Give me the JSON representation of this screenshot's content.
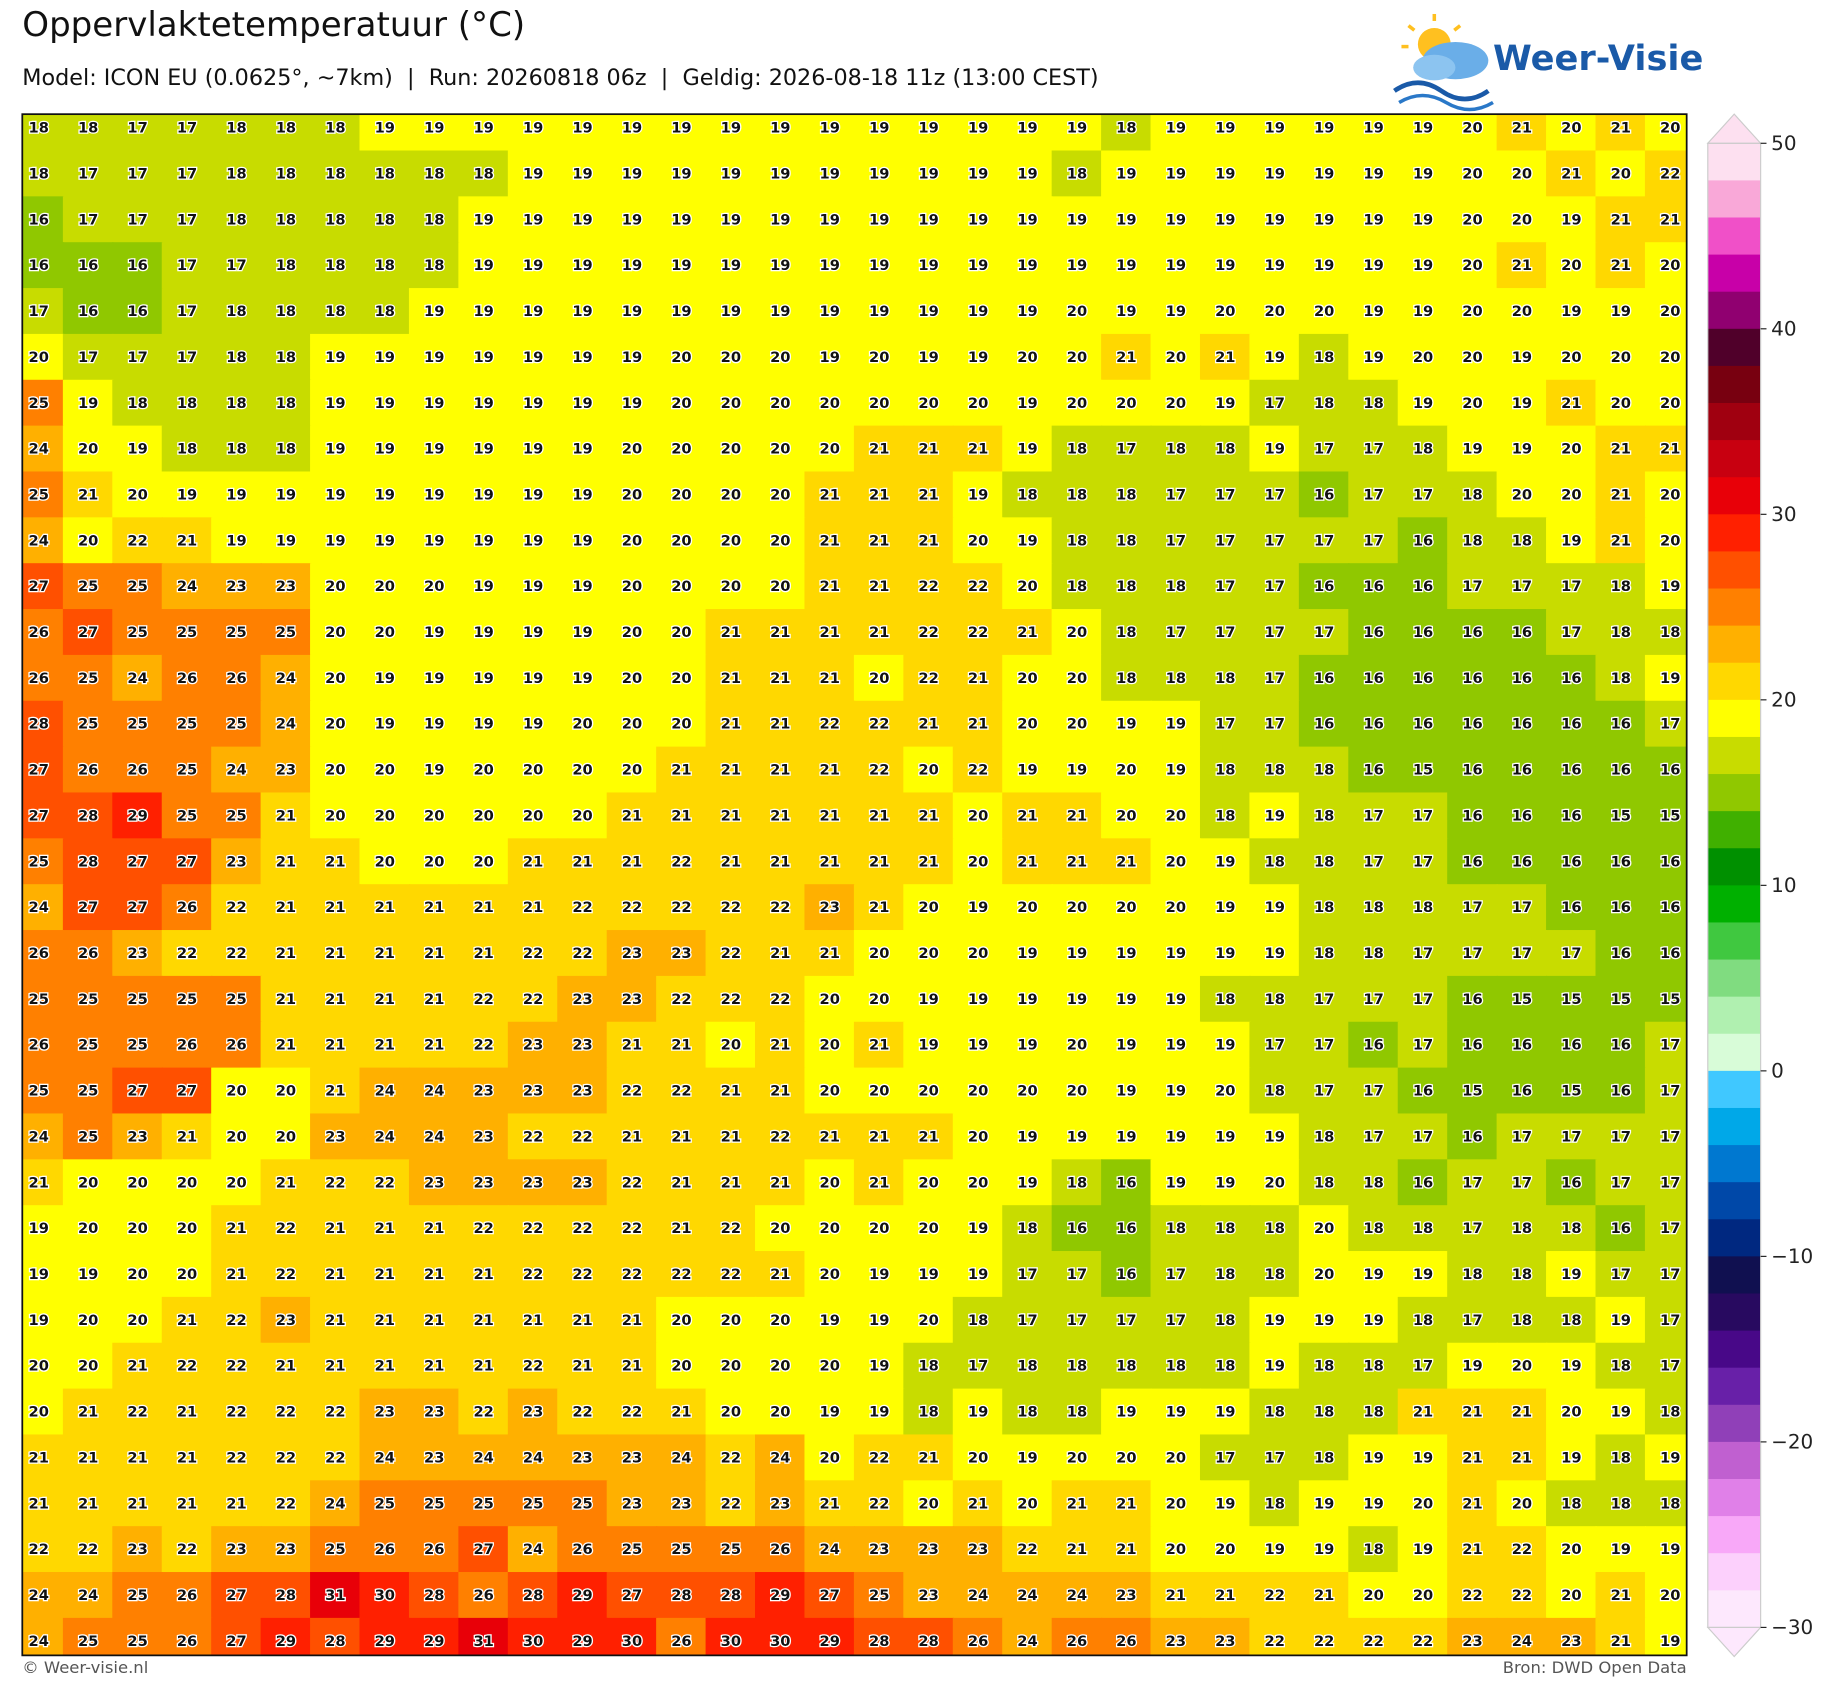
{
  "header": {
    "title": "Oppervlaktetemperatuur (°C)",
    "subtitle": "Model: ICON EU (0.0625°, ~7km)  |  Run: 20260818 06z  |  Geldig: 2026-08-18 11z (13:00 CEST)"
  },
  "logo": {
    "text": "Weer-Visie"
  },
  "grid": {
    "values": [
      [
        18,
        18,
        17,
        17,
        18,
        18,
        18,
        19,
        19,
        19,
        19,
        19,
        19,
        19,
        19,
        19,
        19,
        19,
        19,
        19,
        19,
        19,
        18,
        19,
        19,
        19,
        19,
        19,
        19,
        20,
        21,
        20,
        21,
        20
      ],
      [
        18,
        17,
        17,
        17,
        18,
        18,
        18,
        18,
        18,
        18,
        19,
        19,
        19,
        19,
        19,
        19,
        19,
        19,
        19,
        19,
        19,
        18,
        19,
        19,
        19,
        19,
        19,
        19,
        19,
        20,
        20,
        21,
        20,
        22
      ],
      [
        16,
        17,
        17,
        17,
        18,
        18,
        18,
        18,
        18,
        19,
        19,
        19,
        19,
        19,
        19,
        19,
        19,
        19,
        19,
        19,
        19,
        19,
        19,
        19,
        19,
        19,
        19,
        19,
        19,
        20,
        20,
        19,
        21,
        21
      ],
      [
        16,
        16,
        16,
        17,
        17,
        18,
        18,
        18,
        18,
        19,
        19,
        19,
        19,
        19,
        19,
        19,
        19,
        19,
        19,
        19,
        19,
        19,
        19,
        19,
        19,
        19,
        19,
        19,
        19,
        20,
        21,
        20,
        21,
        20
      ],
      [
        17,
        16,
        16,
        17,
        18,
        18,
        18,
        18,
        19,
        19,
        19,
        19,
        19,
        19,
        19,
        19,
        19,
        19,
        19,
        19,
        19,
        20,
        19,
        19,
        20,
        20,
        20,
        19,
        19,
        20,
        20,
        19,
        19,
        20
      ],
      [
        20,
        17,
        17,
        17,
        18,
        18,
        19,
        19,
        19,
        19,
        19,
        19,
        19,
        20,
        20,
        20,
        19,
        20,
        19,
        19,
        20,
        20,
        21,
        20,
        21,
        19,
        18,
        19,
        20,
        20,
        19,
        20,
        20,
        20
      ],
      [
        25,
        19,
        18,
        18,
        18,
        18,
        19,
        19,
        19,
        19,
        19,
        19,
        19,
        20,
        20,
        20,
        20,
        20,
        20,
        20,
        19,
        20,
        20,
        20,
        19,
        17,
        18,
        18,
        19,
        20,
        19,
        21,
        20,
        20
      ],
      [
        24,
        20,
        19,
        18,
        18,
        18,
        19,
        19,
        19,
        19,
        19,
        19,
        20,
        20,
        20,
        20,
        20,
        21,
        21,
        21,
        19,
        18,
        17,
        18,
        18,
        19,
        17,
        17,
        18,
        19,
        19,
        20,
        21,
        21
      ],
      [
        25,
        21,
        20,
        19,
        19,
        19,
        19,
        19,
        19,
        19,
        19,
        19,
        20,
        20,
        20,
        20,
        21,
        21,
        21,
        19,
        18,
        18,
        18,
        17,
        17,
        17,
        16,
        17,
        17,
        18,
        20,
        20,
        21,
        20
      ],
      [
        24,
        20,
        22,
        21,
        19,
        19,
        19,
        19,
        19,
        19,
        19,
        19,
        20,
        20,
        20,
        20,
        21,
        21,
        21,
        20,
        19,
        18,
        18,
        17,
        17,
        17,
        17,
        17,
        16,
        18,
        18,
        19,
        21,
        20
      ],
      [
        27,
        25,
        25,
        24,
        23,
        23,
        20,
        20,
        20,
        19,
        19,
        19,
        20,
        20,
        20,
        20,
        21,
        21,
        22,
        22,
        20,
        18,
        18,
        18,
        17,
        17,
        16,
        16,
        16,
        17,
        17,
        17,
        18,
        19
      ],
      [
        26,
        27,
        25,
        25,
        25,
        25,
        20,
        20,
        19,
        19,
        19,
        19,
        20,
        20,
        21,
        21,
        21,
        21,
        22,
        22,
        21,
        20,
        18,
        17,
        17,
        17,
        17,
        16,
        16,
        16,
        16,
        17,
        18,
        18
      ],
      [
        26,
        25,
        24,
        26,
        26,
        24,
        20,
        19,
        19,
        19,
        19,
        19,
        20,
        20,
        21,
        21,
        21,
        20,
        22,
        21,
        20,
        20,
        18,
        18,
        18,
        17,
        16,
        16,
        16,
        16,
        16,
        16,
        18,
        19
      ],
      [
        28,
        25,
        25,
        25,
        25,
        24,
        20,
        19,
        19,
        19,
        19,
        20,
        20,
        20,
        21,
        21,
        22,
        22,
        21,
        21,
        20,
        20,
        19,
        19,
        17,
        17,
        16,
        16,
        16,
        16,
        16,
        16,
        16,
        17
      ],
      [
        27,
        26,
        26,
        25,
        24,
        23,
        20,
        20,
        19,
        20,
        20,
        20,
        20,
        21,
        21,
        21,
        21,
        22,
        20,
        22,
        19,
        19,
        20,
        19,
        18,
        18,
        18,
        16,
        15,
        16,
        16,
        16,
        16,
        16
      ],
      [
        27,
        28,
        29,
        25,
        25,
        21,
        20,
        20,
        20,
        20,
        20,
        20,
        21,
        21,
        21,
        21,
        21,
        21,
        21,
        20,
        21,
        21,
        20,
        20,
        18,
        19,
        18,
        17,
        17,
        16,
        16,
        16,
        15,
        15
      ],
      [
        25,
        28,
        27,
        27,
        23,
        21,
        21,
        20,
        20,
        20,
        21,
        21,
        21,
        22,
        21,
        21,
        21,
        21,
        21,
        20,
        21,
        21,
        21,
        20,
        19,
        18,
        18,
        17,
        17,
        16,
        16,
        16,
        16,
        16
      ],
      [
        24,
        27,
        27,
        26,
        22,
        21,
        21,
        21,
        21,
        21,
        21,
        22,
        22,
        22,
        22,
        22,
        23,
        21,
        20,
        19,
        20,
        20,
        20,
        20,
        19,
        19,
        18,
        18,
        18,
        17,
        17,
        16,
        16,
        16
      ],
      [
        26,
        26,
        23,
        22,
        22,
        21,
        21,
        21,
        21,
        21,
        22,
        22,
        23,
        23,
        22,
        21,
        21,
        20,
        20,
        20,
        19,
        19,
        19,
        19,
        19,
        19,
        18,
        18,
        17,
        17,
        17,
        17,
        16,
        16
      ],
      [
        25,
        25,
        25,
        25,
        25,
        21,
        21,
        21,
        21,
        22,
        22,
        23,
        23,
        22,
        22,
        22,
        20,
        20,
        19,
        19,
        19,
        19,
        19,
        19,
        18,
        18,
        17,
        17,
        17,
        16,
        15,
        15,
        15,
        15
      ],
      [
        26,
        25,
        25,
        26,
        26,
        21,
        21,
        21,
        21,
        22,
        23,
        23,
        21,
        21,
        20,
        21,
        20,
        21,
        19,
        19,
        19,
        20,
        19,
        19,
        19,
        17,
        17,
        16,
        17,
        16,
        16,
        16,
        16,
        17
      ],
      [
        25,
        25,
        27,
        27,
        20,
        20,
        21,
        24,
        24,
        23,
        23,
        23,
        22,
        22,
        21,
        21,
        20,
        20,
        20,
        20,
        20,
        20,
        19,
        19,
        20,
        18,
        17,
        17,
        16,
        15,
        16,
        15,
        16,
        17
      ],
      [
        24,
        25,
        23,
        21,
        20,
        20,
        23,
        24,
        24,
        23,
        22,
        22,
        21,
        21,
        21,
        22,
        21,
        21,
        21,
        20,
        19,
        19,
        19,
        19,
        19,
        19,
        18,
        17,
        17,
        16,
        17,
        17,
        17,
        17
      ],
      [
        21,
        20,
        20,
        20,
        20,
        21,
        22,
        22,
        23,
        23,
        23,
        23,
        22,
        21,
        21,
        21,
        20,
        21,
        20,
        20,
        19,
        18,
        16,
        19,
        19,
        20,
        18,
        18,
        16,
        17,
        17,
        16,
        17,
        17
      ],
      [
        19,
        20,
        20,
        20,
        21,
        22,
        21,
        21,
        21,
        22,
        22,
        22,
        22,
        21,
        22,
        20,
        20,
        20,
        20,
        19,
        18,
        16,
        16,
        18,
        18,
        18,
        20,
        18,
        18,
        17,
        18,
        18,
        16,
        17
      ],
      [
        19,
        19,
        20,
        20,
        21,
        22,
        21,
        21,
        21,
        21,
        22,
        22,
        22,
        22,
        22,
        21,
        20,
        19,
        19,
        19,
        17,
        17,
        16,
        17,
        18,
        18,
        20,
        19,
        19,
        18,
        18,
        19,
        17,
        17
      ],
      [
        19,
        20,
        20,
        21,
        22,
        23,
        21,
        21,
        21,
        21,
        21,
        21,
        21,
        20,
        20,
        20,
        19,
        19,
        20,
        18,
        17,
        17,
        17,
        17,
        18,
        19,
        19,
        19,
        18,
        17,
        18,
        18,
        19,
        17
      ],
      [
        20,
        20,
        21,
        22,
        22,
        21,
        21,
        21,
        21,
        21,
        22,
        21,
        21,
        20,
        20,
        20,
        20,
        19,
        18,
        17,
        18,
        18,
        18,
        18,
        18,
        19,
        18,
        18,
        17,
        19,
        20,
        19,
        18,
        17
      ],
      [
        20,
        21,
        22,
        21,
        22,
        22,
        22,
        23,
        23,
        22,
        23,
        22,
        22,
        21,
        20,
        20,
        19,
        19,
        18,
        19,
        18,
        18,
        19,
        19,
        19,
        18,
        18,
        18,
        21,
        21,
        21,
        20,
        19,
        18
      ],
      [
        21,
        21,
        21,
        21,
        22,
        22,
        22,
        24,
        23,
        24,
        24,
        23,
        23,
        24,
        22,
        24,
        20,
        22,
        21,
        20,
        19,
        20,
        20,
        20,
        17,
        17,
        18,
        19,
        19,
        21,
        21,
        19,
        18,
        19
      ],
      [
        21,
        21,
        21,
        21,
        21,
        22,
        24,
        25,
        25,
        25,
        25,
        25,
        23,
        23,
        22,
        23,
        21,
        22,
        20,
        21,
        20,
        21,
        21,
        20,
        19,
        18,
        19,
        19,
        20,
        21,
        20,
        18,
        18,
        18
      ],
      [
        22,
        22,
        23,
        22,
        23,
        23,
        25,
        26,
        26,
        27,
        24,
        26,
        25,
        25,
        25,
        26,
        24,
        23,
        23,
        23,
        22,
        21,
        21,
        20,
        20,
        19,
        19,
        18,
        19,
        21,
        22,
        20,
        19,
        19
      ],
      [
        24,
        24,
        25,
        26,
        27,
        28,
        31,
        30,
        28,
        26,
        28,
        29,
        27,
        28,
        28,
        29,
        27,
        25,
        23,
        24,
        24,
        24,
        23,
        21,
        21,
        22,
        21,
        20,
        20,
        22,
        22,
        20,
        21,
        20
      ],
      [
        24,
        25,
        25,
        26,
        27,
        29,
        28,
        29,
        29,
        31,
        30,
        29,
        30,
        26,
        30,
        30,
        29,
        28,
        28,
        26,
        24,
        26,
        26,
        23,
        23,
        22,
        22,
        22,
        22,
        23,
        24,
        23,
        21,
        19
      ]
    ]
  },
  "colorbar": {
    "lim": [
      -30,
      50
    ],
    "ticks": [
      50,
      40,
      30,
      20,
      10,
      0,
      {
        "value": -10,
        "label": "−10"
      },
      {
        "value": -20,
        "label": "−20"
      },
      {
        "value": -30,
        "label": "−30"
      }
    ],
    "colors": [
      "#fde0f0",
      "#f9a8d8",
      "#f050c8",
      "#c800a8",
      "#900070",
      "#50002a",
      "#780010",
      "#a00010",
      "#c80010",
      "#e80008",
      "#ff2000",
      "#ff5000",
      "#ff8000",
      "#ffb000",
      "#ffd800",
      "#ffff00",
      "#c8dc00",
      "#90c800",
      "#40b000",
      "#009000",
      "#00b000",
      "#40c840",
      "#80dc80",
      "#b0f0b0",
      "#d8fcd8",
      "#40c8ff",
      "#00a8e8",
      "#0078d0",
      "#0048a8",
      "#002880",
      "#101050",
      "#280a60",
      "#480888",
      "#6820a8",
      "#9040b8",
      "#c060d0",
      "#e080e8",
      "#f8a8f8",
      "#fcd0fc",
      "#fde8fd"
    ]
  },
  "footer": {
    "left": "© Weer-visie.nl",
    "right": "Bron: DWD Open Data"
  }
}
